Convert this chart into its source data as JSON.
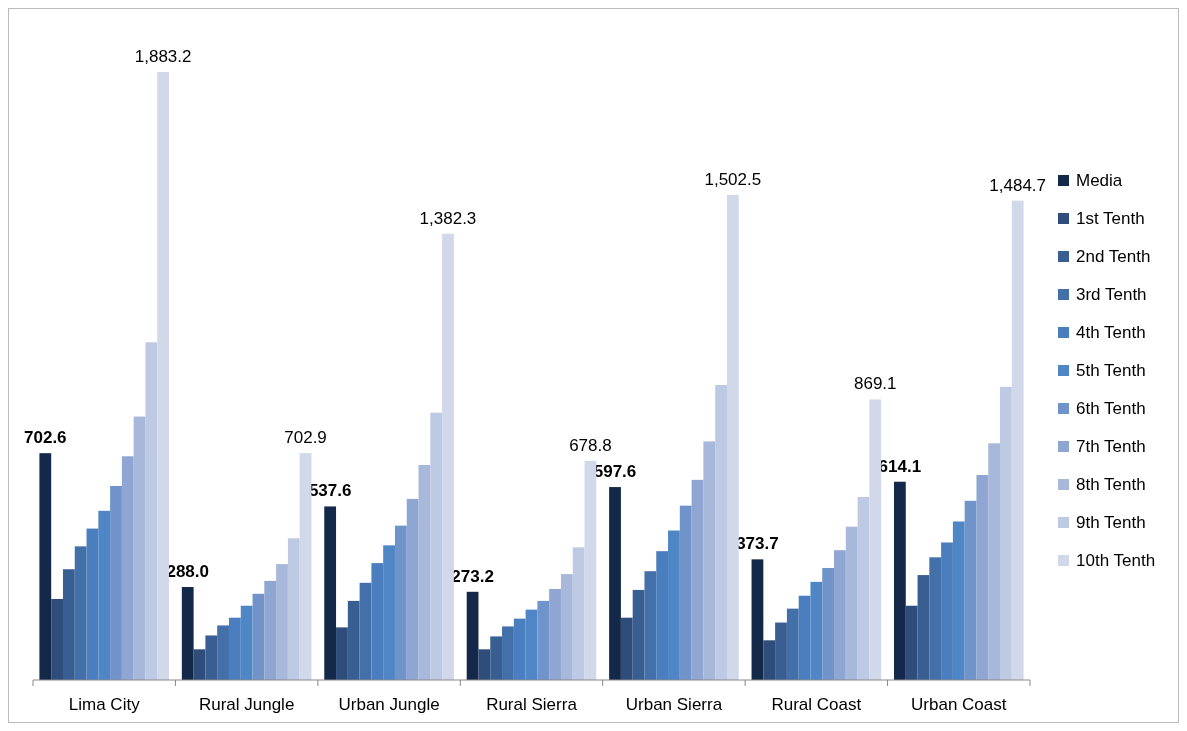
{
  "chart_data": {
    "type": "bar",
    "categories": [
      "Lima City",
      "Rural Jungle",
      "Urban Jungle",
      "Rural Sierra",
      "Urban Sierra",
      "Rural Coast",
      "Urban Coast"
    ],
    "legend": "right",
    "series": [
      {
        "name": "Media",
        "color": "#14294a",
        "values": [
          702.6,
          288.0,
          537.6,
          273.2,
          597.6,
          373.7,
          614.1
        ],
        "value_labels": [
          "702.6",
          "288.0",
          "537.6",
          "273.2",
          "597.6",
          "373.7",
          "614.1"
        ]
      },
      {
        "name": "1st Tenth",
        "color": "#2e4d7b",
        "values": [
          251,
          95,
          163,
          95,
          193,
          123,
          230
        ]
      },
      {
        "name": "2nd Tenth",
        "color": "#395f92",
        "values": [
          343,
          138,
          245,
          135,
          279,
          178,
          325
        ]
      },
      {
        "name": "3rd Tenth",
        "color": "#4370a8",
        "values": [
          414,
          169,
          301,
          166,
          337,
          221,
          380
        ]
      },
      {
        "name": "4th Tenth",
        "color": "#4a7ebe",
        "values": [
          469,
          193,
          362,
          190,
          399,
          261,
          426
        ]
      },
      {
        "name": "5th Tenth",
        "color": "#4f86c6",
        "values": [
          524,
          230,
          417,
          218,
          463,
          304,
          491
        ]
      },
      {
        "name": "6th Tenth",
        "color": "#7094c9",
        "values": [
          601,
          267,
          478,
          245,
          540,
          347,
          555
        ]
      },
      {
        "name": "7th Tenth",
        "color": "#8fa6d2",
        "values": [
          693,
          307,
          561,
          282,
          620,
          402,
          635
        ]
      },
      {
        "name": "8th Tenth",
        "color": "#a8b8da",
        "values": [
          816,
          359,
          666,
          328,
          739,
          475,
          733
        ]
      },
      {
        "name": "9th Tenth",
        "color": "#bec9e4",
        "values": [
          1046,
          439,
          828,
          411,
          914,
          567,
          908
        ]
      },
      {
        "name": "10th Tenth",
        "color": "#d0d8ea",
        "values": [
          1883.2,
          702.9,
          1382.3,
          678.8,
          1502.5,
          869.1,
          1484.7
        ],
        "value_labels": [
          "1,883.2",
          "702.9",
          "1,382.3",
          "678.8",
          "1,502.5",
          "869.1",
          "1,484.7"
        ]
      }
    ]
  }
}
